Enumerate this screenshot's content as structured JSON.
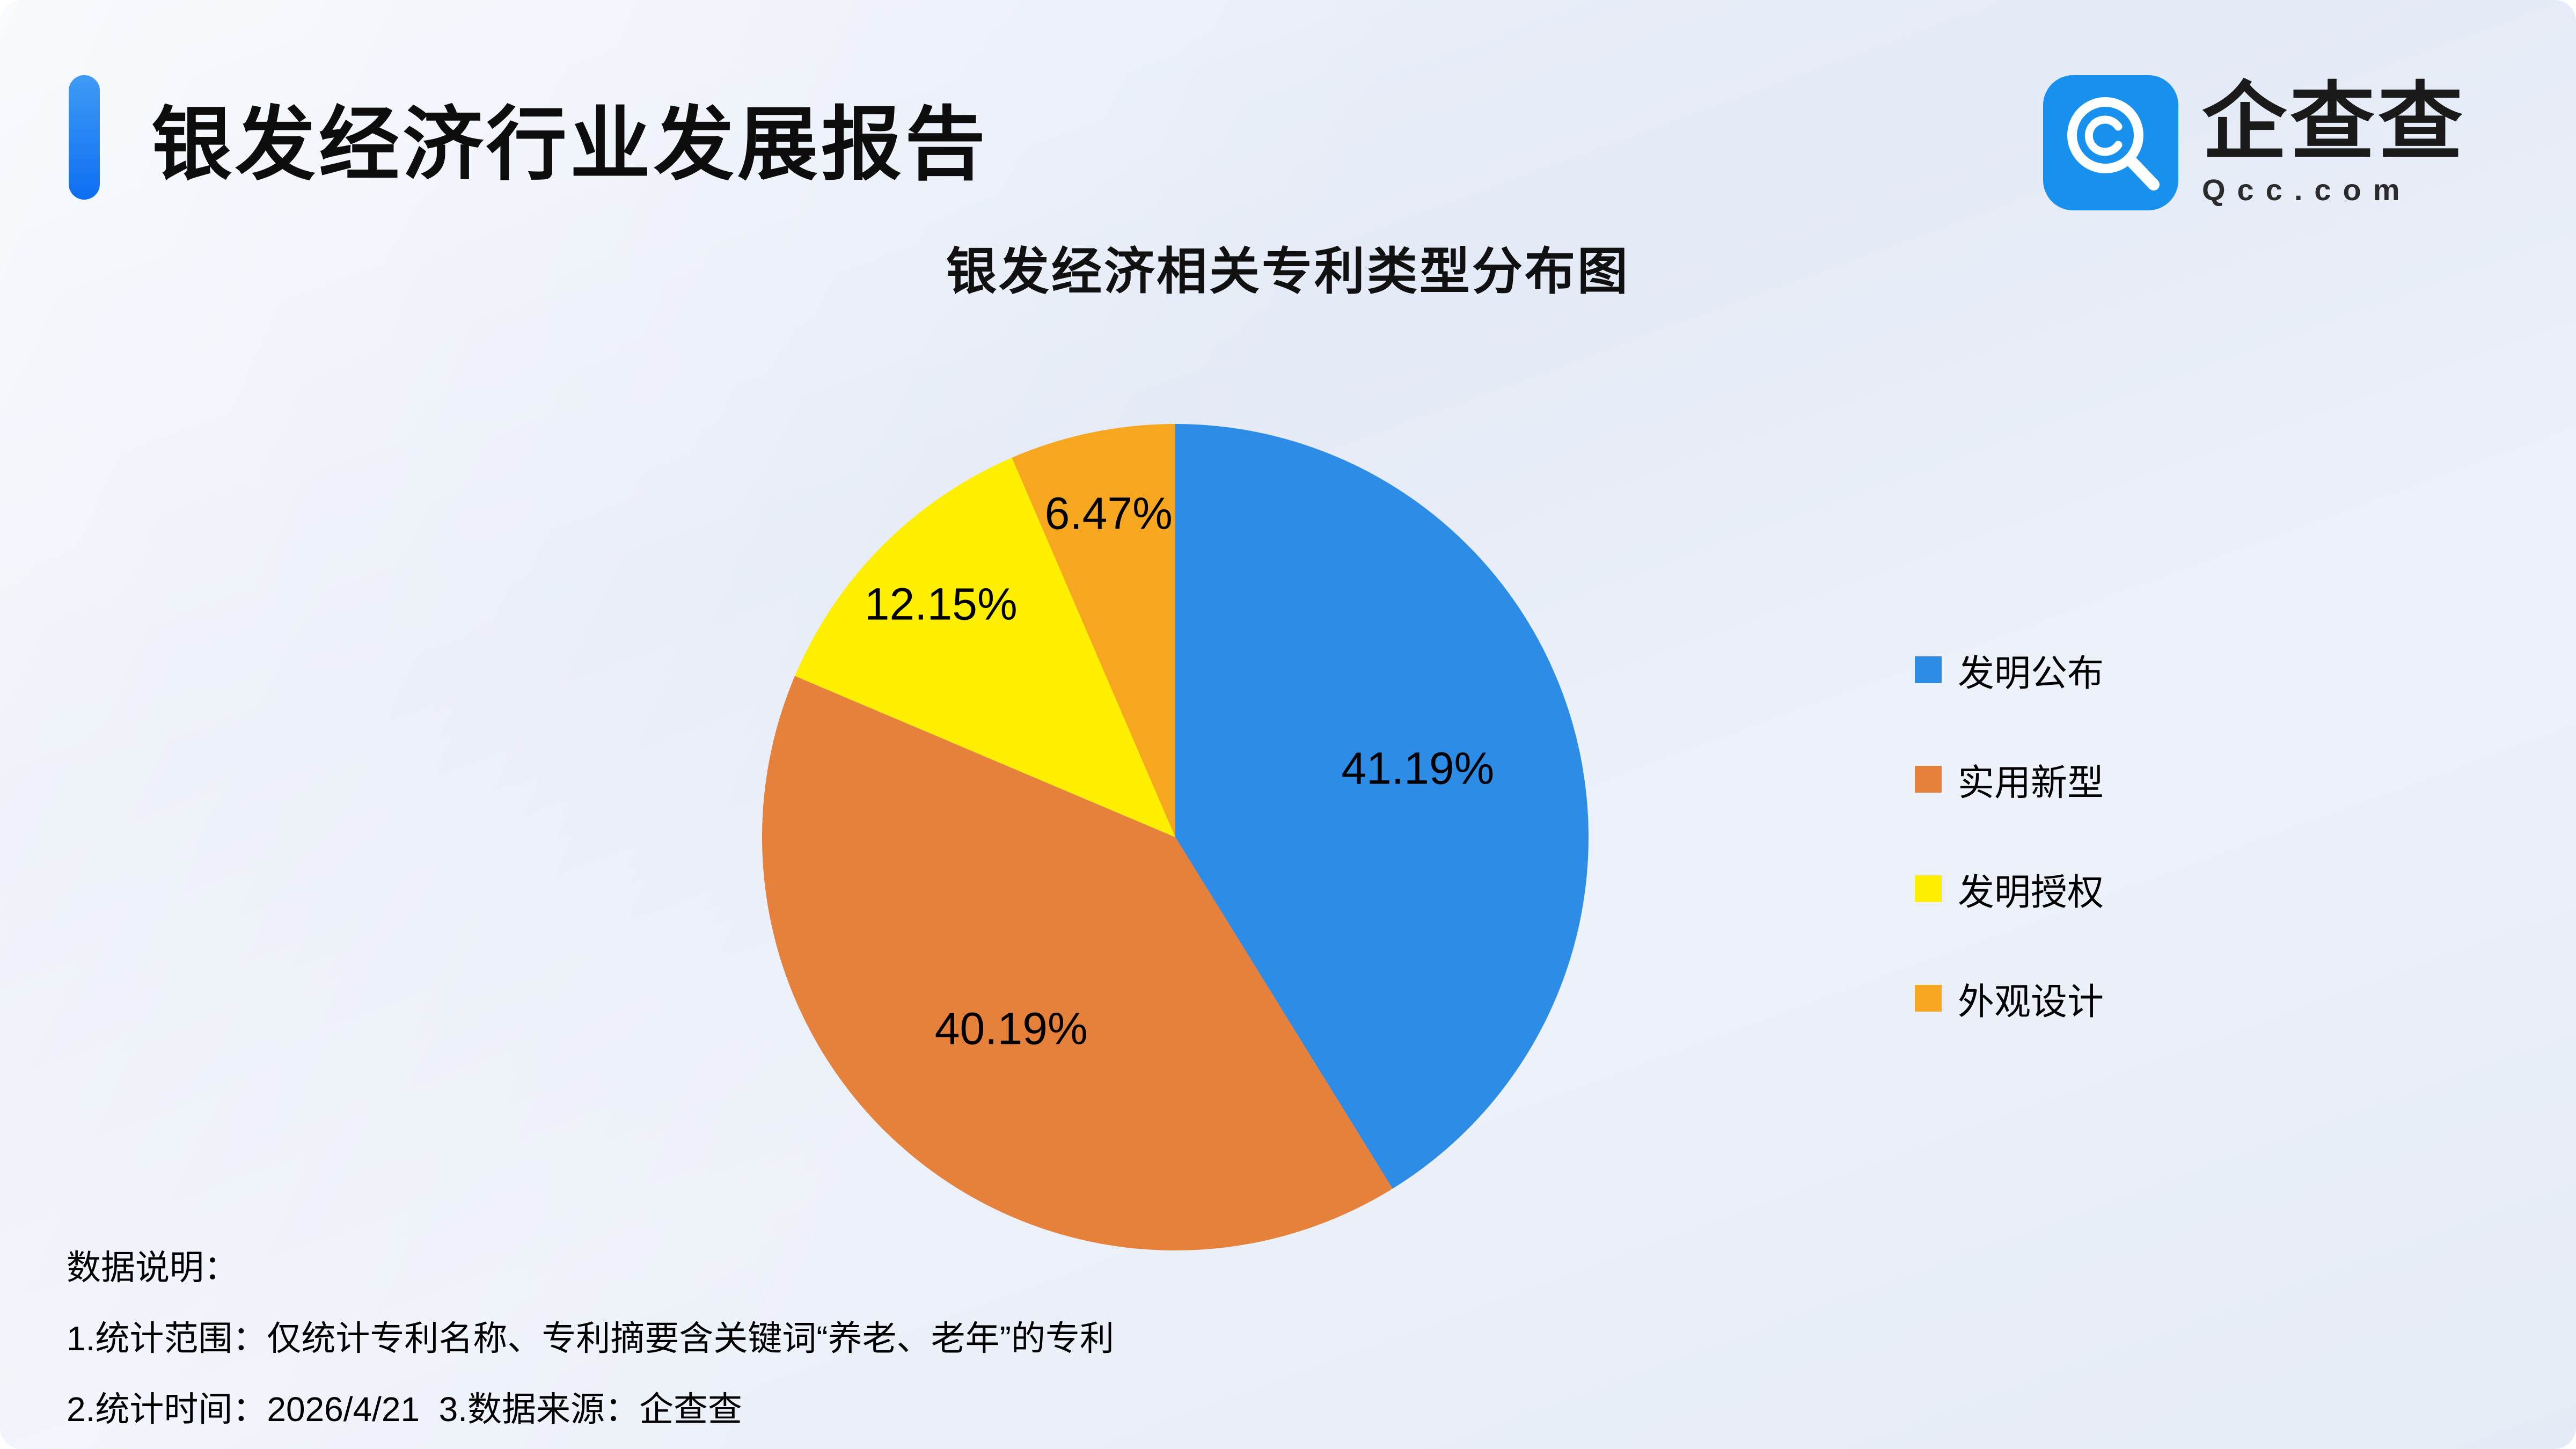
{
  "header": {
    "title": "银发经济行业发展报告",
    "logo_text": "企查查",
    "logo_domain": "Qcc.com"
  },
  "chart_data": {
    "type": "pie",
    "title": "银发经济相关专利类型分布图",
    "categories": [
      "发明公布",
      "实用新型",
      "发明授权",
      "外观设计"
    ],
    "values": [
      41.19,
      40.19,
      12.15,
      6.47
    ],
    "labels": [
      "41.19%",
      "40.19%",
      "12.15%",
      "6.47%"
    ],
    "colors": [
      "#2d8ce6",
      "#e5813b",
      "#feef00",
      "#f6a71f"
    ],
    "start_angle_deg": 0,
    "direction": "clockwise",
    "legend_position": "right",
    "grid": false
  },
  "notes": {
    "heading": "数据说明：",
    "line1": "1.统计范围：仅统计专利名称、专利摘要含关键词“养老、老年”的专利",
    "line2": "2.统计时间：2026/4/21  3.数据来源：企查查"
  }
}
